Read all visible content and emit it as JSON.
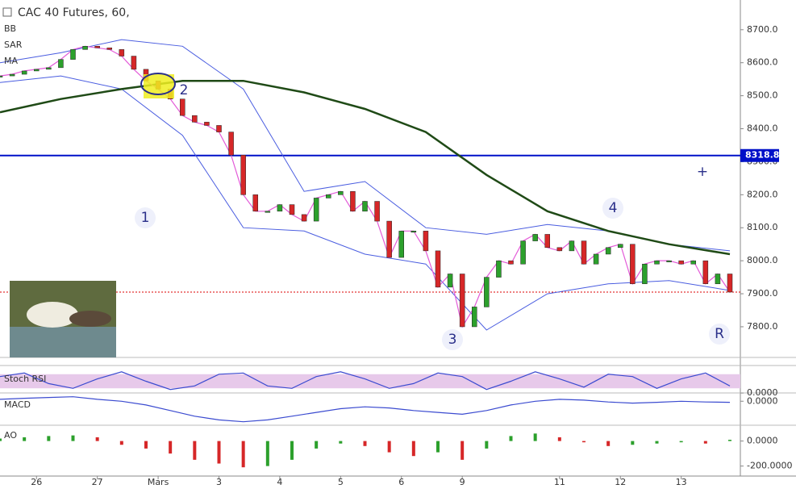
{
  "header": {
    "title": "CAC 40 Futures, 60,",
    "indicators": [
      "BB",
      "SAR",
      "MA"
    ]
  },
  "xlim": [
    0,
    120
  ],
  "xticks": [
    {
      "value": 6,
      "label": "26"
    },
    {
      "value": 16,
      "label": "27"
    },
    {
      "value": 26,
      "label": "Mars"
    },
    {
      "value": 36,
      "label": "3"
    },
    {
      "value": 46,
      "label": "4"
    },
    {
      "value": 56,
      "label": "5"
    },
    {
      "value": 66,
      "label": "6"
    },
    {
      "value": 76,
      "label": "9"
    },
    {
      "value": 92,
      "label": "11"
    },
    {
      "value": 102,
      "label": "12"
    },
    {
      "value": 112,
      "label": "13"
    }
  ],
  "price_pane": {
    "ylim": [
      7707,
      8790
    ],
    "yticks": [
      {
        "value": 7800,
        "label": "7800.0"
      },
      {
        "value": 7900,
        "label": "7900.0"
      },
      {
        "value": 8000,
        "label": "8000.0"
      },
      {
        "value": 8100,
        "label": "8100.0"
      },
      {
        "value": 8200,
        "label": "8200.0"
      },
      {
        "value": 8300,
        "label": "8300.0"
      },
      {
        "value": 8400,
        "label": "8400.0"
      },
      {
        "value": 8500,
        "label": "8500.0"
      },
      {
        "value": 8600,
        "label": "8600.0"
      },
      {
        "value": 8700,
        "label": "8700.0"
      }
    ],
    "x": [
      0,
      2,
      4,
      6,
      8,
      10,
      12,
      14,
      16,
      18,
      20,
      22,
      24,
      26,
      28,
      30,
      32,
      34,
      36,
      38,
      40,
      42,
      44,
      46,
      48,
      50,
      52,
      54,
      56,
      58,
      60,
      62,
      64,
      66,
      68,
      70,
      72,
      74,
      76,
      78,
      80,
      82,
      84,
      86,
      88,
      90,
      92,
      94,
      96,
      98,
      100,
      102,
      104,
      106,
      108,
      110,
      112,
      114,
      116,
      118,
      120
    ],
    "close": [
      8560,
      8565,
      8575,
      8580,
      8585,
      8610,
      8640,
      8650,
      8645,
      8640,
      8620,
      8580,
      8545,
      8520,
      8490,
      8440,
      8420,
      8410,
      8390,
      8320,
      8200,
      8150,
      8150,
      8170,
      8140,
      8120,
      8190,
      8200,
      8210,
      8150,
      8180,
      8120,
      8010,
      8090,
      8090,
      8030,
      7920,
      7960,
      7800,
      7860,
      7950,
      8000,
      7990,
      8060,
      8080,
      8040,
      8030,
      8060,
      7990,
      8020,
      8040,
      8050,
      7930,
      7990,
      8000,
      8000,
      7990,
      8000,
      7930,
      7960,
      7905
    ],
    "ma_x": [
      0,
      10,
      20,
      30,
      40,
      50,
      60,
      70,
      80,
      90,
      100,
      110,
      120
    ],
    "ma200": [
      8450,
      8490,
      8520,
      8545,
      8545,
      8510,
      8460,
      8390,
      8260,
      8150,
      8090,
      8050,
      8020
    ],
    "bb_upper": [
      8600,
      8630,
      8670,
      8650,
      8520,
      8210,
      8240,
      8100,
      8080,
      8110,
      8090,
      8050,
      8030
    ],
    "bb_lower": [
      8540,
      8560,
      8520,
      8380,
      8100,
      8090,
      8020,
      7990,
      7790,
      7900,
      7930,
      7940,
      7910
    ],
    "level": {
      "value": 8318.8,
      "label": "8318.8",
      "color": "#0010c8"
    },
    "stop_line": 7905,
    "annotations": [
      "1",
      "2",
      "3",
      "4",
      "R",
      "+"
    ]
  },
  "stoch_rsi": {
    "label": "Stoch RSI",
    "ylim": [
      -10,
      110
    ],
    "yticks": [
      {
        "value": 0,
        "label": "0.0000"
      }
    ],
    "x": [
      0,
      4,
      8,
      12,
      16,
      20,
      24,
      28,
      32,
      36,
      40,
      44,
      48,
      52,
      56,
      60,
      64,
      68,
      72,
      76,
      80,
      84,
      88,
      92,
      96,
      100,
      104,
      108,
      112,
      116,
      120
    ],
    "values": [
      70,
      85,
      40,
      20,
      60,
      90,
      50,
      15,
      30,
      80,
      85,
      30,
      20,
      70,
      90,
      60,
      20,
      40,
      85,
      70,
      15,
      50,
      90,
      60,
      25,
      80,
      70,
      20,
      60,
      85,
      30
    ]
  },
  "macd": {
    "label": "MACD",
    "ylim": [
      -60,
      20
    ],
    "yticks": [
      {
        "value": 0,
        "label": "0.0000"
      }
    ],
    "x": [
      0,
      4,
      8,
      12,
      16,
      20,
      24,
      28,
      32,
      36,
      40,
      44,
      48,
      52,
      56,
      60,
      64,
      68,
      72,
      76,
      80,
      84,
      88,
      92,
      96,
      100,
      104,
      108,
      112,
      116,
      120
    ],
    "values": [
      5,
      8,
      10,
      12,
      5,
      0,
      -10,
      -25,
      -40,
      -50,
      -55,
      -50,
      -40,
      -30,
      -20,
      -15,
      -18,
      -25,
      -30,
      -35,
      -25,
      -10,
      0,
      5,
      3,
      -2,
      -5,
      -3,
      0,
      -2,
      -3
    ]
  },
  "ao": {
    "label": "AO",
    "ylim": [
      -280,
      120
    ],
    "yticks": [
      {
        "value": 0,
        "label": "0.0000"
      },
      {
        "value": -200,
        "label": "-200.0000"
      }
    ],
    "x": [
      0,
      4,
      8,
      12,
      16,
      20,
      24,
      28,
      32,
      36,
      40,
      44,
      48,
      52,
      56,
      60,
      64,
      68,
      72,
      76,
      80,
      84,
      88,
      92,
      96,
      100,
      104,
      108,
      112,
      116,
      120
    ],
    "values": [
      20,
      30,
      40,
      45,
      30,
      -30,
      -60,
      -100,
      -150,
      -180,
      -210,
      -200,
      -150,
      -60,
      -20,
      -40,
      -90,
      -120,
      -90,
      -150,
      -60,
      40,
      60,
      30,
      -10,
      -40,
      -30,
      -20,
      -10,
      -20,
      10
    ]
  }
}
